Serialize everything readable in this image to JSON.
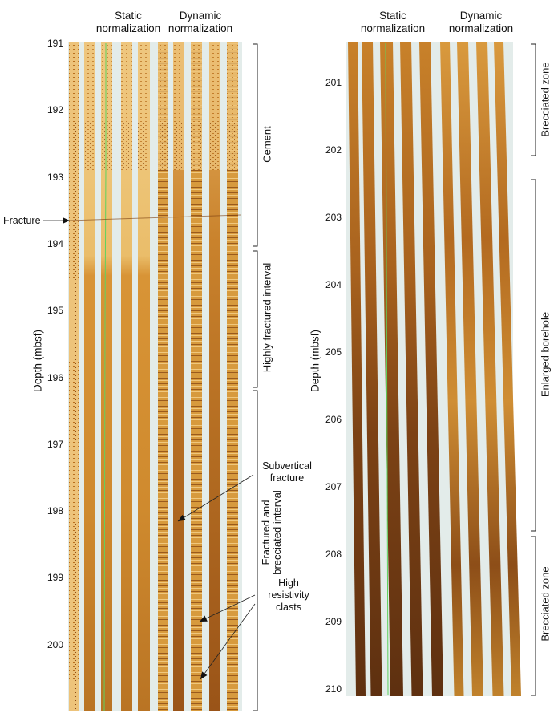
{
  "left_panel": {
    "headers": {
      "static": "Static\nnormalization",
      "dynamic": "Dynamic\nnormalization"
    },
    "y_axis_label": "Depth (mbsf)",
    "depth_ticks": [
      "191",
      "192",
      "193",
      "194",
      "195",
      "196",
      "197",
      "198",
      "199",
      "200"
    ],
    "zones": [
      {
        "label": "Cement"
      },
      {
        "label": "Highly fractured interval"
      },
      {
        "label": "Fractured and\nbrecciated interval"
      }
    ],
    "annotations": {
      "fracture": "Fracture",
      "subvertical": "Subvertical\nfracture",
      "clasts": "High\nresistivity\nclasts"
    }
  },
  "right_panel": {
    "headers": {
      "static": "Static\nnormalization",
      "dynamic": "Dynamic\nnormalization"
    },
    "y_axis_label": "Depth (mbsf)",
    "depth_ticks": [
      "201",
      "202",
      "203",
      "204",
      "205",
      "206",
      "207",
      "208",
      "209",
      "210"
    ],
    "zones": [
      {
        "label": "Brecciated zone"
      },
      {
        "label": "Enlarged borehole"
      },
      {
        "label": "Brecciated zone"
      }
    ]
  },
  "colors": {
    "gap": "#e3ecea",
    "light_amber": "#e6b25a",
    "amber": "#c8862e",
    "dark_brown": "#6a3a12",
    "green_trace": "#5fd35f"
  }
}
